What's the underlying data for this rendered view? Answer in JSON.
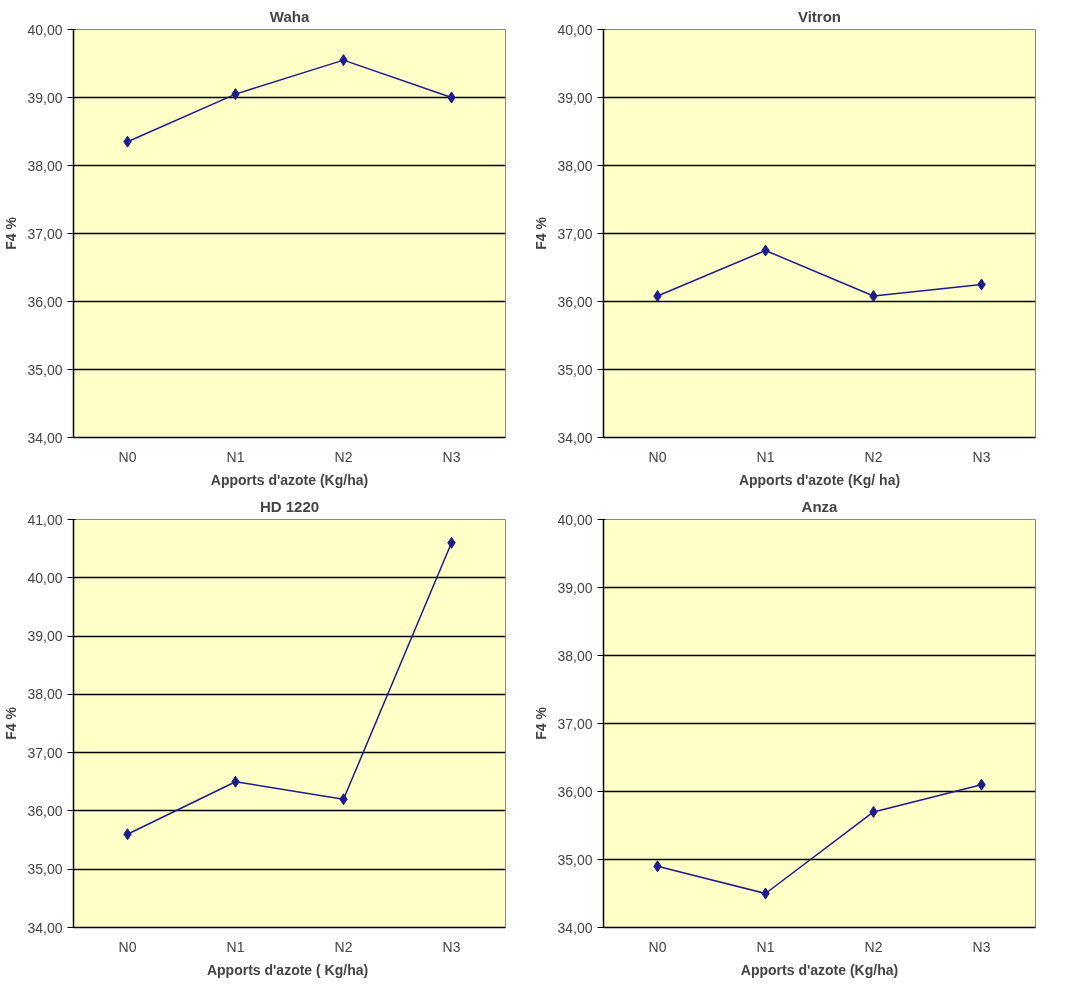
{
  "chart_data": [
    {
      "type": "line",
      "title": "Waha",
      "xlabel": "Apports d'azote (Kg/ha)",
      "ylabel": "F4 %",
      "categories": [
        "N0",
        "N1",
        "N2",
        "N3"
      ],
      "series": [
        {
          "color": "#1c1c8c",
          "values": [
            38.35,
            39.05,
            39.55,
            39.0
          ]
        }
      ],
      "ylim": [
        34,
        40
      ],
      "yticks": [
        {
          "value": 34,
          "label": "34,00"
        },
        {
          "value": 35,
          "label": "35,00"
        },
        {
          "value": 36,
          "label": "36,00"
        },
        {
          "value": 37,
          "label": "37,00"
        },
        {
          "value": 38,
          "label": "38,00"
        },
        {
          "value": 39,
          "label": "39,00"
        },
        {
          "value": 40,
          "label": "40,00"
        }
      ],
      "grid": "y",
      "marker": "diamond",
      "line_style": "solid"
    },
    {
      "type": "line",
      "title": "Vitron",
      "xlabel": "Apports d'azote (Kg/ ha)",
      "ylabel": "F4 %",
      "categories": [
        "N0",
        "N1",
        "N2",
        "N3"
      ],
      "series": [
        {
          "color": "#1c1c8c",
          "values": [
            36.08,
            36.75,
            36.08,
            36.25
          ]
        }
      ],
      "ylim": [
        34,
        40
      ],
      "yticks": [
        {
          "value": 34,
          "label": "34,00"
        },
        {
          "value": 35,
          "label": "35,00"
        },
        {
          "value": 36,
          "label": "36,00"
        },
        {
          "value": 37,
          "label": "37,00"
        },
        {
          "value": 38,
          "label": "38,00"
        },
        {
          "value": 39,
          "label": "39,00"
        },
        {
          "value": 40,
          "label": "40,00"
        }
      ],
      "grid": "y",
      "marker": "diamond",
      "line_style": "solid"
    },
    {
      "type": "line",
      "title": "HD 1220",
      "xlabel": "Apports d'azote  ( Kg/ha)",
      "ylabel": "F4 %",
      "categories": [
        "N0",
        "N1",
        "N2",
        "N3"
      ],
      "series": [
        {
          "color": "#1c1c8c",
          "values": [
            35.6,
            36.5,
            36.2,
            40.6
          ]
        }
      ],
      "ylim": [
        34,
        41
      ],
      "yticks": [
        {
          "value": 34,
          "label": "34,00"
        },
        {
          "value": 35,
          "label": "35,00"
        },
        {
          "value": 36,
          "label": "36,00"
        },
        {
          "value": 37,
          "label": "37,00"
        },
        {
          "value": 38,
          "label": "38,00"
        },
        {
          "value": 39,
          "label": "39,00"
        },
        {
          "value": 40,
          "label": "40,00"
        },
        {
          "value": 41,
          "label": "41,00"
        }
      ],
      "grid": "y",
      "marker": "diamond",
      "line_style": "solid"
    },
    {
      "type": "line",
      "title": "Anza",
      "xlabel": "Apports d'azote (Kg/ha)",
      "ylabel": "F4 %",
      "categories": [
        "N0",
        "N1",
        "N2",
        "N3"
      ],
      "series": [
        {
          "color": "#1c1c8c",
          "values": [
            34.9,
            34.5,
            35.7,
            36.1
          ]
        }
      ],
      "ylim": [
        34,
        40
      ],
      "yticks": [
        {
          "value": 34,
          "label": "34,00"
        },
        {
          "value": 35,
          "label": "35,00"
        },
        {
          "value": 36,
          "label": "36,00"
        },
        {
          "value": 37,
          "label": "37,00"
        },
        {
          "value": 38,
          "label": "38,00"
        },
        {
          "value": 39,
          "label": "39,00"
        },
        {
          "value": 40,
          "label": "40,00"
        }
      ],
      "grid": "y",
      "marker": "diamond",
      "line_style": "solid"
    }
  ]
}
